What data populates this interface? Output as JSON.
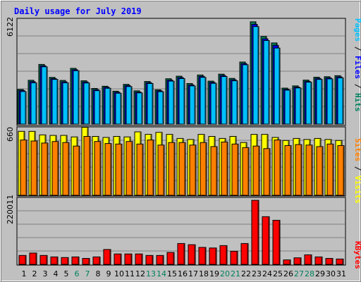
{
  "chart_data": [
    {
      "type": "bar",
      "title": "Daily usage for July 2019",
      "categories": [
        "1",
        "2",
        "3",
        "4",
        "5",
        "6",
        "7",
        "8",
        "9",
        "10",
        "11",
        "12",
        "13",
        "14",
        "15",
        "16",
        "17",
        "18",
        "19",
        "20",
        "21",
        "22",
        "23",
        "24",
        "25",
        "26",
        "27",
        "28",
        "29",
        "30",
        "31"
      ],
      "weekend_days": [
        "6",
        "7",
        "13",
        "14",
        "20",
        "21",
        "27",
        "28"
      ],
      "ytick_label": "6122",
      "ymax": 6122,
      "series": [
        {
          "name": "Hits",
          "color": "#00805c",
          "values": [
            2030,
            2570,
            3500,
            2740,
            2560,
            3270,
            2540,
            2090,
            2220,
            1930,
            2330,
            1950,
            2500,
            2010,
            2660,
            2810,
            2380,
            2880,
            2520,
            2930,
            2680,
            3640,
            6000,
            5140,
            4760,
            2110,
            2240,
            2580,
            2750,
            2780,
            2840
          ]
        },
        {
          "name": "Files",
          "color": "#0000ff",
          "values": [
            1970,
            2490,
            3420,
            2670,
            2480,
            3190,
            2470,
            2020,
            2160,
            1870,
            2260,
            1880,
            2430,
            1950,
            2580,
            2730,
            2300,
            2800,
            2450,
            2850,
            2600,
            3550,
            5850,
            5000,
            4620,
            2040,
            2170,
            2510,
            2680,
            2710,
            2770
          ]
        },
        {
          "name": "Pages",
          "color": "#00c0ff",
          "values": [
            1910,
            2420,
            3360,
            2620,
            2420,
            3130,
            2410,
            1960,
            2100,
            1810,
            2200,
            1830,
            2380,
            1900,
            2520,
            2670,
            2240,
            2740,
            2390,
            2790,
            2540,
            3480,
            5720,
            4900,
            4460,
            1990,
            2120,
            2460,
            2620,
            2650,
            2710
          ]
        }
      ]
    },
    {
      "type": "bar",
      "ytick_label": "660",
      "ymax": 660,
      "series": [
        {
          "name": "Visits",
          "color": "#ffff00",
          "values": [
            630,
            630,
            595,
            590,
            590,
            575,
            670,
            580,
            570,
            580,
            575,
            625,
            600,
            620,
            600,
            560,
            550,
            600,
            580,
            560,
            580,
            520,
            600,
            600,
            570,
            540,
            560,
            550,
            560,
            550,
            540
          ]
        },
        {
          "name": "Sites",
          "color": "#ff8000",
          "values": [
            545,
            535,
            515,
            530,
            520,
            485,
            580,
            530,
            510,
            505,
            530,
            505,
            545,
            495,
            520,
            520,
            495,
            520,
            480,
            525,
            505,
            470,
            485,
            460,
            545,
            490,
            500,
            495,
            480,
            505,
            490
          ]
        }
      ]
    },
    {
      "type": "bar",
      "ytick_label": "220011",
      "ymax": 220011,
      "series": [
        {
          "name": "KBytes",
          "color": "#ff0000",
          "values": [
            30000,
            38000,
            30000,
            25000,
            23000,
            25000,
            20000,
            25000,
            50000,
            35000,
            35000,
            35000,
            30000,
            30000,
            40000,
            70000,
            66000,
            57000,
            55000,
            63000,
            44000,
            70000,
            215000,
            160000,
            148000,
            15000,
            22000,
            32000,
            25000,
            20000,
            18000
          ]
        }
      ]
    }
  ],
  "right_labels": {
    "panel1": [
      {
        "text": "Pages",
        "color": "#00c0ff"
      },
      {
        "text": " / ",
        "color": "#000000"
      },
      {
        "text": "Files",
        "color": "#0000ff"
      },
      {
        "text": " / ",
        "color": "#000000"
      },
      {
        "text": "Hits",
        "color": "#00805c"
      }
    ],
    "panel2": [
      {
        "text": "Sites",
        "color": "#ff8000"
      },
      {
        "text": " / ",
        "color": "#000000"
      },
      {
        "text": "Visits",
        "color": "#ffff00"
      }
    ],
    "panel3": [
      {
        "text": "KBytes",
        "color": "#ff0000"
      }
    ]
  },
  "colors": {
    "title": "#0000ff",
    "weekday_label": "#000000",
    "weekend_label": "#00805c",
    "background": "#c0c0c0",
    "plot": "#c0c0c0"
  }
}
